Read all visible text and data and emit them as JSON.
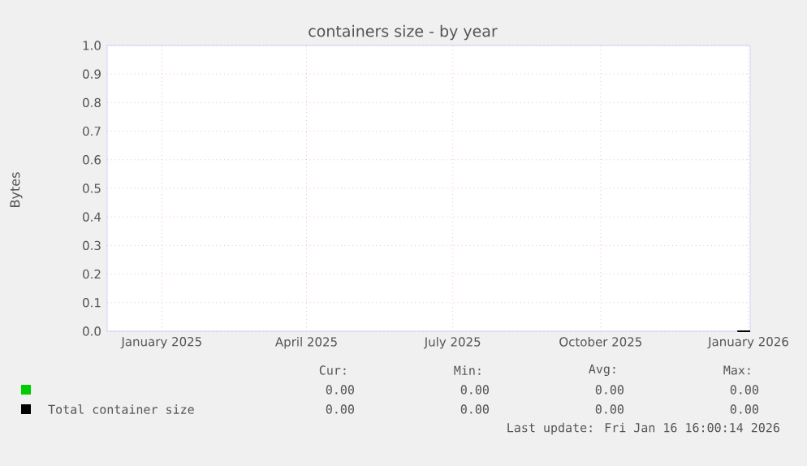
{
  "chart_data": {
    "type": "line",
    "title": "containers size - by year",
    "ylabel": "Bytes",
    "xlim": [
      "2024-12-12",
      "2026-01-16"
    ],
    "xticks": [
      {
        "value": "2025-01-15",
        "label": "January 2025"
      },
      {
        "value": "2025-04-15",
        "label": "April 2025"
      },
      {
        "value": "2025-07-15",
        "label": "July 2025"
      },
      {
        "value": "2025-10-15",
        "label": "October 2025"
      },
      {
        "value": "2026-01-15",
        "label": "January 2026"
      }
    ],
    "ylim": [
      0,
      1
    ],
    "yticks": [
      {
        "value": 0,
        "label": "0.0"
      },
      {
        "value": 0.1,
        "label": "0.1"
      },
      {
        "value": 0.2,
        "label": "0.2"
      },
      {
        "value": 0.3,
        "label": "0.3"
      },
      {
        "value": 0.4,
        "label": "0.4"
      },
      {
        "value": 0.5,
        "label": "0.5"
      },
      {
        "value": 0.6,
        "label": "0.6"
      },
      {
        "value": 0.7,
        "label": "0.7"
      },
      {
        "value": 0.8,
        "label": "0.8"
      },
      {
        "value": 0.9,
        "label": "0.9"
      },
      {
        "value": 1,
        "label": "1.0"
      }
    ],
    "grid": true,
    "legend": "bottom",
    "marker": "none",
    "line_style": "solid",
    "series": [
      {
        "color": "#00cc00",
        "values": [
          null
        ]
      },
      {
        "color": "#000000",
        "name": "Total container size",
        "x": [
          "2026-01-08",
          "2026-01-16"
        ],
        "values": [
          0,
          0
        ]
      }
    ],
    "annotations": [
      "Cur:",
      "Min:",
      "Avg:",
      "Max:",
      "0.00",
      "0.00",
      "0.00",
      "0.00",
      "0.00",
      "0.00",
      "0.00",
      "0.00",
      "Last update: Fri Jan 16 16:00:14 2026"
    ]
  }
}
